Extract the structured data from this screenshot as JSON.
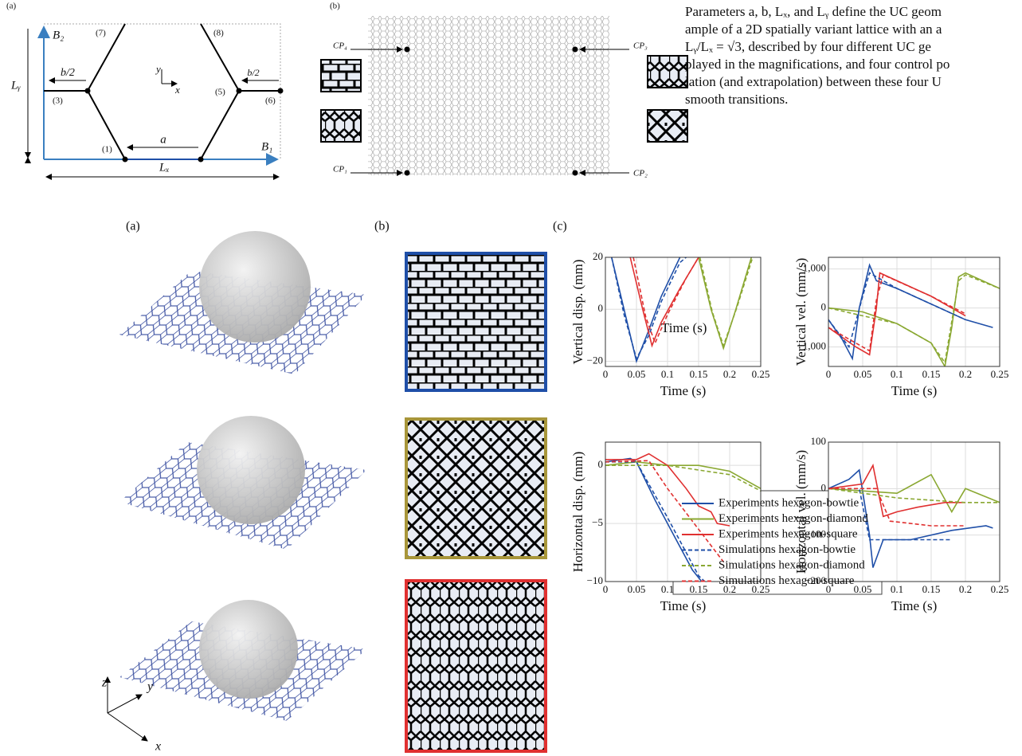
{
  "top_panel_a": {
    "label": "(a)",
    "b2": "B₂",
    "ly": "Lᵧ",
    "half_b_left": "b/2",
    "half_b_right": "b/2",
    "axis_y": "y",
    "axis_x": "x",
    "b1": "B₁",
    "lx": "Lₓ",
    "a": "a",
    "nodes": [
      "(1)",
      "(3)",
      "(5)",
      "(6)",
      "(7)",
      "(8)"
    ]
  },
  "top_panel_b": {
    "label": "(b)",
    "control_points": [
      "CP₄",
      "CP₃",
      "CP₁",
      "CP₂"
    ]
  },
  "paragraph": {
    "lines": [
      "Parameters a, b, Lₓ, and Lᵧ define the UC geom",
      "ample of a 2D spatially variant lattice with an a",
      "Lᵧ/Lₓ = √3, described by four different UC ge",
      "played in the magnifications, and four control po",
      "lation (and extrapolation) between these four U",
      "smooth transitions."
    ]
  },
  "bottom": {
    "panel_labels": [
      "(a)",
      "(b)",
      "(c)"
    ],
    "axes": [
      "z",
      "y",
      "x"
    ]
  },
  "chart_data": [
    {
      "type": "line",
      "y_label": "Vertical disp. (mm)",
      "x_label": "Time (s)",
      "annotation": "Time (s)",
      "grid": true,
      "xlim": [
        0,
        0.25
      ],
      "xticks": [
        0,
        0.05,
        0.1,
        0.15,
        0.2,
        0.25
      ],
      "ylim": [
        -22,
        20
      ],
      "yticks": [
        {
          "value": -20,
          "label": "−20"
        },
        0,
        20
      ],
      "series": [
        {
          "name": "Experiments hexagon-bowtie",
          "color": "#1f4fa8",
          "dash": false,
          "x": [
            0.01,
            0.03,
            0.05,
            0.07,
            0.09,
            0.11,
            0.12
          ],
          "values": [
            20,
            0,
            -20,
            -8,
            5,
            15,
            20
          ]
        },
        {
          "name": "Experiments hexagon-diamond",
          "color": "#8aa832",
          "dash": false,
          "x": [
            0.15,
            0.17,
            0.19,
            0.21,
            0.235
          ],
          "values": [
            20,
            0,
            -15,
            0,
            20
          ]
        },
        {
          "name": "Experiments hexagon-square",
          "color": "#e03030",
          "dash": false,
          "x": [
            0.04,
            0.06,
            0.075,
            0.09,
            0.12,
            0.15
          ],
          "values": [
            20,
            0,
            -14,
            -5,
            8,
            20
          ]
        },
        {
          "name": "Simulations hexagon-bowtie",
          "color": "#1f4fa8",
          "dash": true,
          "x": [
            0.01,
            0.03,
            0.05,
            0.07,
            0.09,
            0.12,
            0.13
          ],
          "values": [
            20,
            -2,
            -19,
            -10,
            3,
            18,
            20
          ]
        },
        {
          "name": "Simulations hexagon-diamond",
          "color": "#8aa832",
          "dash": true,
          "x": [
            0.152,
            0.172,
            0.19,
            0.212,
            0.237
          ],
          "values": [
            20,
            -1,
            -14,
            1,
            20
          ]
        },
        {
          "name": "Simulations hexagon-square",
          "color": "#e03030",
          "dash": true,
          "x": [
            0.045,
            0.065,
            0.08,
            0.1,
            0.13,
            0.15
          ],
          "values": [
            20,
            -3,
            -13,
            -2,
            12,
            20
          ]
        }
      ]
    },
    {
      "type": "line",
      "y_label": "Vertical vel. (mm/s)",
      "x_label": "Time (s)",
      "grid": true,
      "xlim": [
        0,
        0.25
      ],
      "xticks": [
        0,
        0.05,
        0.1,
        0.15,
        0.2,
        0.25
      ],
      "ylim": [
        -1500,
        1300
      ],
      "yticks": [
        {
          "value": -1000,
          "label": "−1,000"
        },
        0,
        {
          "value": 1000,
          "label": "1,000"
        }
      ],
      "series": [
        {
          "color": "#1f4fa8",
          "dash": false,
          "x": [
            0,
            0.02,
            0.035,
            0.045,
            0.06,
            0.07,
            0.1,
            0.15,
            0.2,
            0.24
          ],
          "values": [
            -300,
            -800,
            -1300,
            0,
            1100,
            700,
            500,
            100,
            -300,
            -500
          ]
        },
        {
          "color": "#8aa832",
          "dash": false,
          "x": [
            0,
            0.05,
            0.1,
            0.15,
            0.17,
            0.18,
            0.19,
            0.2,
            0.25
          ],
          "values": [
            0,
            -100,
            -400,
            -900,
            -1500,
            -500,
            800,
            900,
            500
          ]
        },
        {
          "color": "#e03030",
          "dash": false,
          "x": [
            0,
            0.04,
            0.06,
            0.07,
            0.075,
            0.1,
            0.15,
            0.2
          ],
          "values": [
            -500,
            -1000,
            -1200,
            0,
            900,
            700,
            300,
            -200
          ]
        },
        {
          "color": "#1f4fa8",
          "dash": true,
          "x": [
            0,
            0.03,
            0.05,
            0.06,
            0.1,
            0.15,
            0.2
          ],
          "values": [
            -300,
            -1000,
            300,
            900,
            500,
            100,
            -300
          ]
        },
        {
          "color": "#8aa832",
          "dash": true,
          "x": [
            0,
            0.1,
            0.15,
            0.17,
            0.19,
            0.2,
            0.25
          ],
          "values": [
            0,
            -400,
            -900,
            -1400,
            700,
            850,
            500
          ]
        },
        {
          "color": "#e03030",
          "dash": true,
          "x": [
            0,
            0.06,
            0.07,
            0.08,
            0.15,
            0.2
          ],
          "values": [
            -500,
            -1100,
            200,
            850,
            300,
            -150
          ]
        }
      ]
    },
    {
      "type": "line",
      "y_label": "Horizontal  disp. (mm)",
      "x_label": "Time (s)",
      "grid": true,
      "xlim": [
        0,
        0.25
      ],
      "xticks": [
        0,
        0.05,
        0.1,
        0.15,
        0.2,
        0.25
      ],
      "ylim": [
        -10,
        2
      ],
      "yticks": [
        {
          "value": -10,
          "label": "−10"
        },
        {
          "value": -5,
          "label": "−5"
        },
        0
      ],
      "series": [
        {
          "color": "#1f4fa8",
          "dash": false,
          "x": [
            0,
            0.04,
            0.05,
            0.08,
            0.11,
            0.14,
            0.155
          ],
          "values": [
            0.3,
            0.6,
            0.3,
            -3,
            -6,
            -9,
            -10
          ]
        },
        {
          "color": "#8aa832",
          "dash": false,
          "x": [
            0,
            0.05,
            0.1,
            0.15,
            0.2,
            0.25
          ],
          "values": [
            0,
            0.3,
            0,
            0,
            -0.5,
            -2
          ]
        },
        {
          "color": "#e03030",
          "dash": false,
          "x": [
            0,
            0.05,
            0.07,
            0.1,
            0.13,
            0.15,
            0.17,
            0.18,
            0.2
          ],
          "values": [
            0.5,
            0.5,
            1,
            0,
            -2,
            -3.5,
            -4,
            -5,
            -5.2
          ]
        },
        {
          "color": "#1f4fa8",
          "dash": true,
          "x": [
            0,
            0.05,
            0.1,
            0.15,
            0.16
          ],
          "values": [
            0.3,
            0.3,
            -4.5,
            -9.5,
            -10
          ]
        },
        {
          "color": "#8aa832",
          "dash": true,
          "x": [
            0,
            0.1,
            0.2,
            0.25
          ],
          "values": [
            0,
            0,
            -0.8,
            -2.2
          ]
        },
        {
          "color": "#e03030",
          "dash": true,
          "x": [
            0,
            0.07,
            0.1,
            0.15,
            0.19
          ],
          "values": [
            0.3,
            0.4,
            -2,
            -5.5,
            -8.3
          ]
        }
      ]
    },
    {
      "type": "line",
      "y_label": "Horizontal vel. (mm/s)",
      "x_label": "Time (s)",
      "grid": true,
      "xlim": [
        0,
        0.25
      ],
      "xticks": [
        0,
        0.05,
        0.1,
        0.15,
        0.2,
        0.25
      ],
      "ylim": [
        -200,
        100
      ],
      "yticks": [
        {
          "value": -200,
          "label": "−200"
        },
        {
          "value": -100,
          "label": "−100"
        },
        0,
        100
      ],
      "series": [
        {
          "color": "#1f4fa8",
          "dash": false,
          "x": [
            0,
            0.03,
            0.045,
            0.06,
            0.065,
            0.08,
            0.12,
            0.18,
            0.23,
            0.24
          ],
          "values": [
            0,
            20,
            40,
            -100,
            -170,
            -110,
            -110,
            -90,
            -80,
            -85
          ]
        },
        {
          "color": "#8aa832",
          "dash": false,
          "x": [
            0,
            0.1,
            0.15,
            0.18,
            0.2,
            0.25
          ],
          "values": [
            0,
            -10,
            30,
            -50,
            0,
            -30
          ]
        },
        {
          "color": "#e03030",
          "dash": false,
          "x": [
            0,
            0.05,
            0.065,
            0.08,
            0.1,
            0.13,
            0.17,
            0.2
          ],
          "values": [
            0,
            10,
            50,
            -60,
            -50,
            -40,
            -30,
            -30
          ]
        },
        {
          "color": "#1f4fa8",
          "dash": true,
          "x": [
            0,
            0.045,
            0.06,
            0.1,
            0.18
          ],
          "values": [
            0,
            0,
            -110,
            -110,
            -110
          ]
        },
        {
          "color": "#8aa832",
          "dash": true,
          "x": [
            0,
            0.1,
            0.2,
            0.25
          ],
          "values": [
            0,
            -20,
            -30,
            -30
          ]
        },
        {
          "color": "#e03030",
          "dash": true,
          "x": [
            0,
            0.07,
            0.09,
            0.15,
            0.2
          ],
          "values": [
            0,
            0,
            -70,
            -80,
            -80
          ]
        }
      ]
    }
  ]
}
